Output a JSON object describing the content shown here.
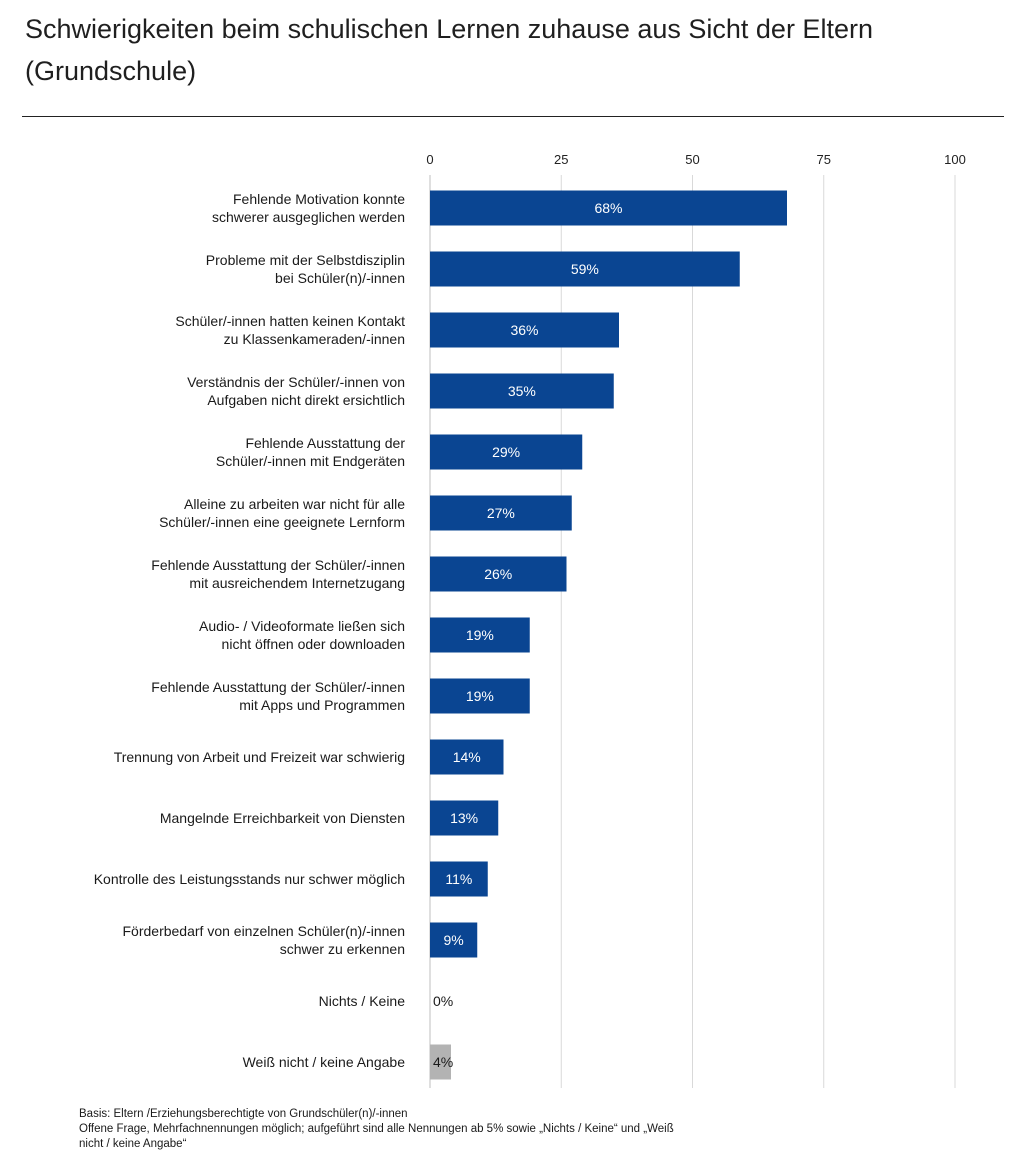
{
  "title_line1": "Schwierigkeiten beim schulischen Lernen zuhause aus Sicht der Eltern",
  "title_line2": "(Grundschule)",
  "footnote": {
    "line1": "Basis: Eltern /Erziehungsberechtigte von Grundschüler(n)/-innen",
    "line2": "Offene Frage, Mehrfachnennungen möglich; aufgeführt sind alle Nennungen ab 5% sowie „Nichts / Keine“ und „Weiß",
    "line3": "nicht / keine Angabe“"
  },
  "colors": {
    "bar": "#0a4592",
    "bar_muted": "#b3b3b3",
    "grid": "#d9d9d9"
  },
  "chart_data": {
    "type": "bar",
    "orientation": "horizontal",
    "title": "Schwierigkeiten beim schulischen Lernen zuhause aus Sicht der Eltern (Grundschule)",
    "xlim": [
      0,
      100
    ],
    "xticks": [
      0,
      25,
      50,
      75,
      100
    ],
    "grid": true,
    "value_suffix": "%",
    "categories": [
      [
        "Fehlende Motivation konnte",
        "schwerer ausgeglichen werden"
      ],
      [
        "Probleme mit der Selbstdisziplin",
        "bei Schüler(n)/-innen"
      ],
      [
        "Schüler/-innen hatten keinen Kontakt",
        "zu Klassenkameraden/-innen"
      ],
      [
        "Verständnis der Schüler/-innen von",
        "Aufgaben nicht direkt ersichtlich"
      ],
      [
        "Fehlende Ausstattung der",
        "Schüler/-innen mit Endgeräten"
      ],
      [
        "Alleine zu arbeiten war nicht für alle",
        "Schüler/-innen eine geeignete Lernform"
      ],
      [
        "Fehlende Ausstattung der Schüler/-innen",
        "mit ausreichendem Internetzugang"
      ],
      [
        "Audio- / Videoformate ließen sich",
        "nicht öffnen oder downloaden"
      ],
      [
        "Fehlende Ausstattung der Schüler/-innen",
        "mit Apps und Programmen"
      ],
      [
        "Trennung von Arbeit und Freizeit war schwierig"
      ],
      [
        "Mangelnde Erreichbarkeit von Diensten"
      ],
      [
        "Kontrolle des Leistungsstands nur schwer möglich"
      ],
      [
        "Förderbedarf von einzelnen Schüler(n)/-innen",
        "schwer zu erkennen"
      ],
      [
        "Nichts / Keine"
      ],
      [
        "Weiß nicht / keine Angabe"
      ]
    ],
    "values": [
      68,
      59,
      36,
      35,
      29,
      27,
      26,
      19,
      19,
      14,
      13,
      11,
      9,
      0,
      4
    ],
    "muted": [
      false,
      false,
      false,
      false,
      false,
      false,
      false,
      false,
      false,
      false,
      false,
      false,
      false,
      false,
      true
    ]
  }
}
